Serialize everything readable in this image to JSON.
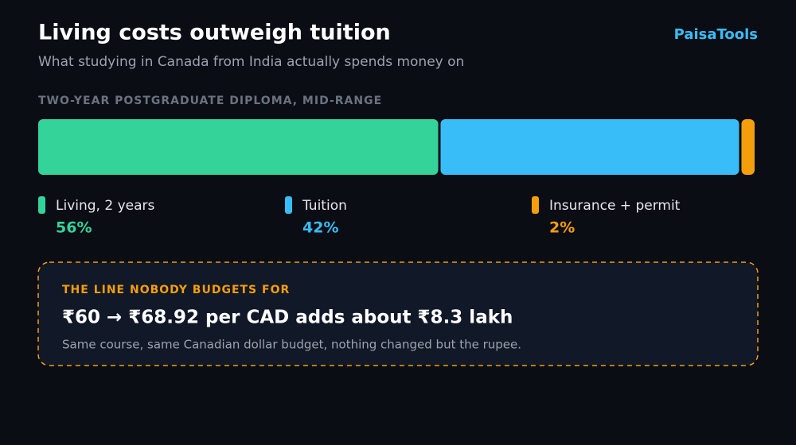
{
  "chart_data": {
    "type": "stacked-bar",
    "title": "Living costs outweigh tuition",
    "subtitle": "What studying in Canada from India actually spends money on",
    "categories": [
      "TWO-YEAR POSTGRADUATE DIPLOMA, MID-RANGE"
    ],
    "xlim": [
      0,
      100
    ],
    "series": [
      {
        "name": "Living, 2 years",
        "color": "#34d399",
        "values": [
          56
        ],
        "value_labels": [
          "56%"
        ]
      },
      {
        "name": "Tuition",
        "color": "#38bdf8",
        "values": [
          42
        ],
        "value_labels": [
          "42%"
        ]
      },
      {
        "name": "Insurance + permit",
        "color": "#f59e0b",
        "values": [
          2
        ],
        "value_labels": [
          "2%"
        ]
      }
    ]
  },
  "brand": "PaisaTools",
  "callout": {
    "label": "THE LINE NOBODY BUDGETS FOR",
    "headline": "₹60 → ₹68.92 per CAD adds about ₹8.3 lakh",
    "note": "Same course, same Canadian dollar budget, nothing changed but the rupee."
  }
}
